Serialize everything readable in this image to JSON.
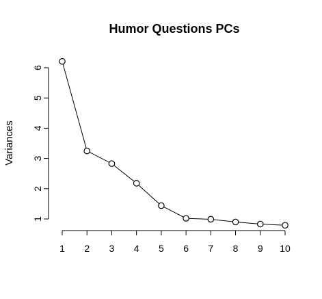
{
  "chart_data": {
    "type": "line",
    "title": "Humor Questions PCs",
    "xlabel": "",
    "ylabel": "Variances",
    "x": [
      1,
      2,
      3,
      4,
      5,
      6,
      7,
      8,
      9,
      10
    ],
    "values": [
      6.21,
      3.25,
      2.83,
      2.18,
      1.44,
      1.02,
      0.99,
      0.9,
      0.83,
      0.79
    ],
    "xticks": [
      "1",
      "2",
      "3",
      "4",
      "5",
      "6",
      "7",
      "8",
      "9",
      "10"
    ],
    "yticks": [
      "1",
      "2",
      "3",
      "4",
      "5",
      "6"
    ],
    "ylim": [
      0.8,
      6.2
    ],
    "xlim": [
      1,
      10
    ],
    "marker": "open-circle",
    "grid": false,
    "legend": "none"
  }
}
